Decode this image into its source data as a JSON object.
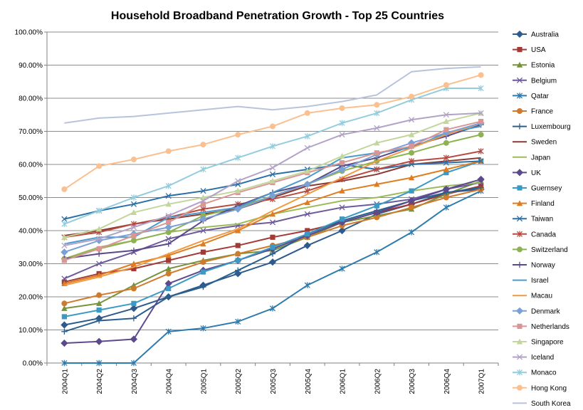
{
  "chart_data": {
    "type": "line",
    "title": "Household Broadband Penetration Growth - Top 25 Countries",
    "xlabel": "",
    "ylabel": "",
    "ylim": [
      0,
      100
    ],
    "ytick_step": 10,
    "ytick_format": "percent_2dp",
    "grid": "horizontal",
    "legend_placement": "right",
    "categories": [
      "2004Q1",
      "2004Q2",
      "2004Q3",
      "2004Q4",
      "2005Q1",
      "2005Q2",
      "2005Q3",
      "2005Q4",
      "2006Q1",
      "2006Q2",
      "2006Q3",
      "2006Q4",
      "2007Q1"
    ],
    "series": [
      {
        "name": "Australia",
        "color": "#2e5a8c",
        "marker": "diamond",
        "values": [
          11.5,
          13.5,
          16.5,
          20.0,
          23.5,
          27.0,
          30.5,
          35.5,
          40.0,
          45.0,
          48.0,
          51.5,
          52.5
        ]
      },
      {
        "name": "USA",
        "color": "#a33a36",
        "marker": "square",
        "values": [
          24.5,
          27.0,
          28.5,
          31.0,
          33.5,
          35.5,
          38.0,
          40.0,
          42.5,
          45.5,
          48.0,
          51.0,
          53.5
        ]
      },
      {
        "name": "Estonia",
        "color": "#76923c",
        "marker": "triangle",
        "values": [
          16.5,
          18.0,
          23.5,
          28.5,
          31.0,
          33.0,
          34.0,
          38.0,
          42.5,
          44.5,
          46.5,
          51.0,
          55.0
        ]
      },
      {
        "name": "Belgium",
        "color": "#6c5a9c",
        "marker": "x",
        "values": [
          25.5,
          30.0,
          33.5,
          37.5,
          40.0,
          41.5,
          42.5,
          45.0,
          47.0,
          48.0,
          49.5,
          52.5,
          54.5
        ]
      },
      {
        "name": "Qatar",
        "color": "#2e7bae",
        "marker": "star",
        "values": [
          0.0,
          0.0,
          0.0,
          9.5,
          10.5,
          12.5,
          16.5,
          23.5,
          28.5,
          33.5,
          39.5,
          47.0,
          52.0
        ]
      },
      {
        "name": "France",
        "color": "#d07a2c",
        "marker": "circle",
        "values": [
          18.0,
          20.5,
          22.5,
          27.0,
          30.5,
          33.0,
          35.5,
          38.0,
          41.5,
          44.0,
          47.0,
          50.0,
          52.5
        ]
      },
      {
        "name": "Luxembourg",
        "color": "#2b5f8f",
        "marker": "plus",
        "values": [
          9.5,
          12.8,
          13.5,
          20.0,
          23.0,
          28.0,
          33.0,
          39.0,
          43.0,
          46.0,
          49.0,
          51.5,
          53.0
        ]
      },
      {
        "name": "Sweden",
        "color": "#8a3a30",
        "marker": "dash",
        "values": [
          38.5,
          40.0,
          42.0,
          43.5,
          45.0,
          46.5,
          50.0,
          53.5,
          55.0,
          57.0,
          60.0,
          61.0,
          62.0
        ]
      },
      {
        "name": "Japan",
        "color": "#9bbb59",
        "marker": "dash",
        "values": [
          31.5,
          35.0,
          37.0,
          39.5,
          41.0,
          42.0,
          45.0,
          47.0,
          49.0,
          50.0,
          52.0,
          53.5,
          54.5
        ]
      },
      {
        "name": "UK",
        "color": "#5c4a8c",
        "marker": "diamond",
        "values": [
          6.0,
          6.5,
          7.2,
          24.0,
          28.0,
          31.0,
          34.5,
          38.5,
          42.5,
          45.5,
          49.0,
          52.5,
          55.5
        ]
      },
      {
        "name": "Guernsey",
        "color": "#3a9ac4",
        "marker": "square",
        "values": [
          14.0,
          16.0,
          18.0,
          22.5,
          27.5,
          31.0,
          35.0,
          39.0,
          43.5,
          47.5,
          52.0,
          57.5,
          61.0
        ]
      },
      {
        "name": "Finland",
        "color": "#e07c20",
        "marker": "triangle",
        "values": [
          24.0,
          26.5,
          30.0,
          32.5,
          36.0,
          40.0,
          45.0,
          48.5,
          52.0,
          54.0,
          56.0,
          58.5,
          61.0
        ]
      },
      {
        "name": "Taiwan",
        "color": "#2a70a8",
        "marker": "x",
        "values": [
          43.5,
          46.0,
          48.0,
          50.5,
          52.0,
          54.0,
          57.0,
          58.5,
          60.0,
          58.5,
          60.0,
          60.5,
          61.0
        ]
      },
      {
        "name": "Canada",
        "color": "#b84a40",
        "marker": "star",
        "values": [
          38.0,
          39.5,
          42.0,
          44.0,
          46.5,
          48.0,
          49.5,
          52.0,
          55.5,
          58.5,
          61.0,
          62.0,
          64.0
        ]
      },
      {
        "name": "Switzerland",
        "color": "#8db350",
        "marker": "circle",
        "values": [
          31.5,
          34.5,
          37.0,
          39.5,
          44.5,
          47.0,
          50.5,
          54.0,
          58.0,
          61.0,
          63.5,
          66.5,
          69.0
        ]
      },
      {
        "name": "Norway",
        "color": "#5a4a8a",
        "marker": "plus",
        "values": [
          31.5,
          33.0,
          34.0,
          36.0,
          43.0,
          47.5,
          51.5,
          54.0,
          59.5,
          62.0,
          65.5,
          68.5,
          72.0
        ]
      },
      {
        "name": "Israel",
        "color": "#4a9ccc",
        "marker": "dash",
        "values": [
          36.0,
          38.0,
          38.0,
          44.0,
          45.5,
          47.0,
          51.5,
          56.0,
          62.0,
          63.5,
          65.0,
          69.5,
          71.5
        ]
      },
      {
        "name": "Macau",
        "color": "#f09a40",
        "marker": "dash",
        "values": [
          23.5,
          26.0,
          29.0,
          33.0,
          37.0,
          40.5,
          46.0,
          51.0,
          56.0,
          61.0,
          65.0,
          69.0,
          72.5
        ]
      },
      {
        "name": "Denmark",
        "color": "#7aa0d4",
        "marker": "diamond",
        "values": [
          33.5,
          37.0,
          39.0,
          41.0,
          43.5,
          46.5,
          50.5,
          54.0,
          58.5,
          63.0,
          66.5,
          69.5,
          72.5
        ]
      },
      {
        "name": "Netherlands",
        "color": "#d99694",
        "marker": "square",
        "values": [
          31.0,
          34.5,
          38.5,
          42.5,
          48.0,
          51.5,
          54.5,
          57.5,
          60.5,
          63.5,
          65.5,
          70.5,
          73.0
        ]
      },
      {
        "name": "Singapore",
        "color": "#c3d69b",
        "marker": "triangle",
        "values": [
          38.0,
          40.5,
          45.5,
          48.0,
          50.0,
          52.0,
          55.0,
          58.0,
          62.5,
          66.5,
          69.0,
          73.0,
          75.5
        ]
      },
      {
        "name": "Iceland",
        "color": "#b2a2c7",
        "marker": "x",
        "values": [
          35.5,
          37.5,
          41.0,
          44.5,
          49.0,
          55.0,
          59.0,
          65.0,
          69.0,
          71.0,
          73.5,
          75.0,
          75.5
        ]
      },
      {
        "name": "Monaco",
        "color": "#93cddd",
        "marker": "star",
        "values": [
          42.0,
          46.0,
          50.0,
          53.5,
          58.5,
          62.0,
          65.5,
          68.5,
          72.5,
          75.5,
          79.5,
          83.0,
          83.0
        ]
      },
      {
        "name": "Hong Kong",
        "color": "#fac090",
        "marker": "circle",
        "values": [
          52.5,
          59.5,
          61.5,
          64.0,
          66.0,
          69.0,
          71.5,
          75.5,
          77.0,
          78.0,
          80.5,
          84.0,
          87.0
        ]
      },
      {
        "name": "South Korea",
        "color": "#b7c4dc",
        "marker": "dash",
        "values": [
          72.5,
          74.0,
          74.5,
          75.5,
          76.5,
          77.5,
          76.5,
          77.5,
          79.0,
          81.0,
          88.0,
          89.0,
          89.5
        ]
      }
    ]
  }
}
